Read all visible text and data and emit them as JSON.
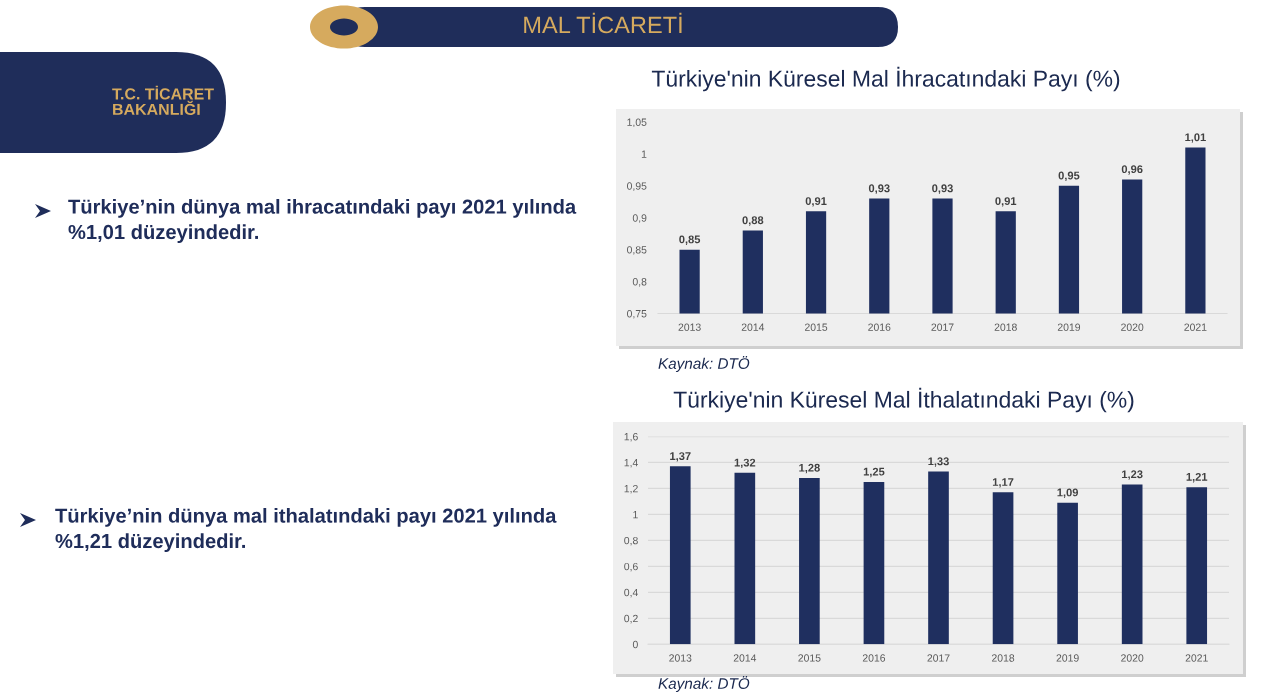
{
  "chart_data": [
    {
      "type": "other",
      "title": "MAL TİCARETİ",
      "annotations": [
        "T.C. TİCARET\nBAKANLIĞI",
        "Türkiye’nin dünya mal ihracatındaki payı 2021 yılında\n%1,01 düzeyindedir.",
        "Türkiye’nin dünya mal ithalatındaki payı 2021 yılında\n%1,21 düzeyindedir."
      ]
    },
    {
      "type": "bar",
      "title": "Türkiye'nin Küresel Mal İhracatındaki Payı (%)",
      "categories": [
        "2013",
        "2014",
        "2015",
        "2016",
        "2017",
        "2018",
        "2019",
        "2020",
        "2021"
      ],
      "values": [
        0.85,
        0.88,
        0.91,
        0.93,
        0.93,
        0.91,
        0.95,
        0.96,
        1.01
      ],
      "value_labels": [
        "0,85",
        "0,88",
        "0,91",
        "0,93",
        "0,93",
        "0,91",
        "0,95",
        "0,96",
        "1,01"
      ],
      "color": "#1f2f5f",
      "ylim": [
        0.75,
        1.05
      ],
      "yticks": [
        {
          "value": 0.75,
          "label": "0,75"
        },
        {
          "value": 0.8,
          "label": "0,8"
        },
        {
          "value": 0.85,
          "label": "0,85"
        },
        {
          "value": 0.9,
          "label": "0,9"
        },
        {
          "value": 0.95,
          "label": "0,95"
        },
        1,
        {
          "value": 1.05,
          "label": "1,05"
        }
      ],
      "grid": false,
      "annotations": [
        "Kaynak: DTÖ"
      ]
    },
    {
      "type": "bar",
      "title": "Türkiye'nin Küresel Mal İthalatındaki Payı (%)",
      "categories": [
        "2013",
        "2014",
        "2015",
        "2016",
        "2017",
        "2018",
        "2019",
        "2020",
        "2021"
      ],
      "values": [
        1.37,
        1.32,
        1.28,
        1.25,
        1.33,
        1.17,
        1.09,
        1.23,
        1.21
      ],
      "value_labels": [
        "1,37",
        "1,32",
        "1,28",
        "1,25",
        "1,33",
        "1,17",
        "1,09",
        "1,23",
        "1,21"
      ],
      "color": "#1f2f5f",
      "ylim": [
        0,
        1.6
      ],
      "yticks": [
        0,
        {
          "value": 0.2,
          "label": "0,2"
        },
        {
          "value": 0.4,
          "label": "0,4"
        },
        {
          "value": 0.6,
          "label": "0,6"
        },
        {
          "value": 0.8,
          "label": "0,8"
        },
        1,
        {
          "value": 1.2,
          "label": "1,2"
        },
        {
          "value": 1.4,
          "label": "1,4"
        },
        {
          "value": 1.6,
          "label": "1,6"
        }
      ],
      "grid": "y",
      "annotations": [
        "Kaynak: DTÖ"
      ]
    }
  ]
}
